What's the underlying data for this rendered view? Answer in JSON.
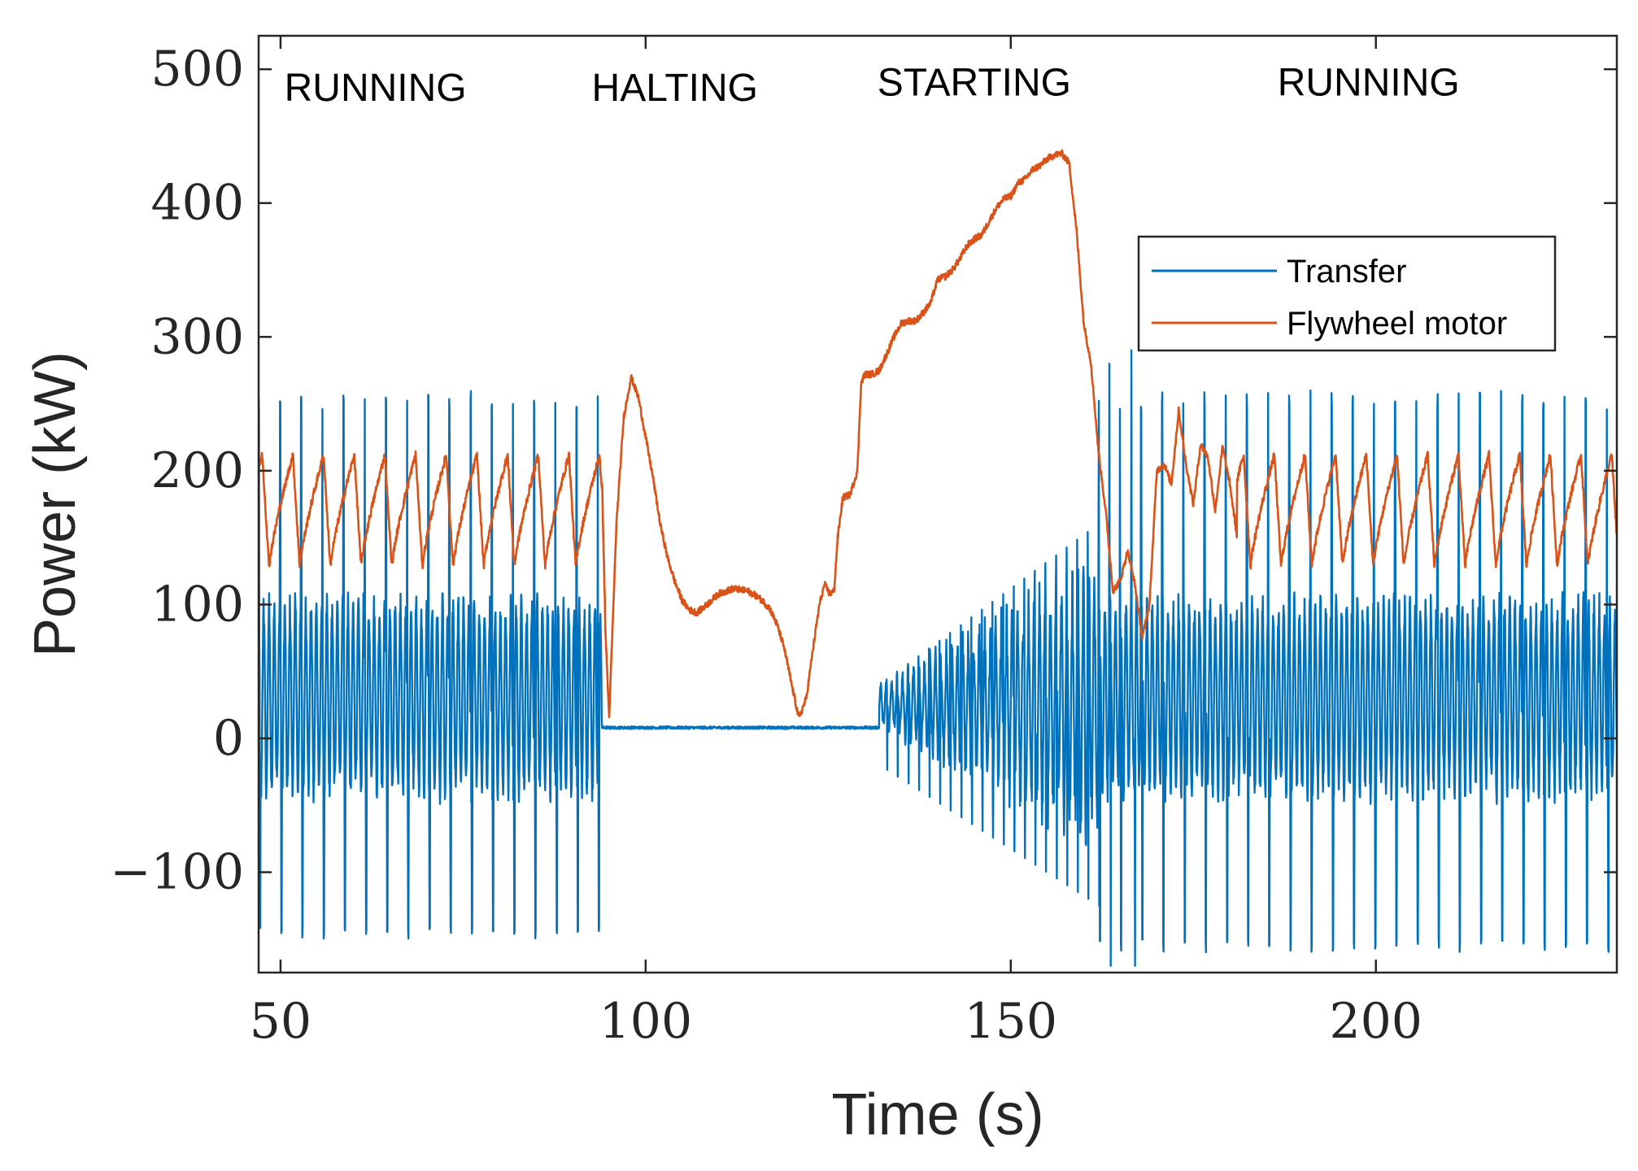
{
  "chart_data": {
    "type": "line",
    "title": "",
    "xlabel": "Time (s)",
    "ylabel": "Power (kW)",
    "xlim": [
      47,
      233
    ],
    "ylim": [
      -175,
      525
    ],
    "x_ticks": [
      50,
      100,
      150,
      200
    ],
    "x_tick_labels": [
      "50",
      "100",
      "150",
      "200"
    ],
    "y_ticks": [
      -100,
      0,
      100,
      200,
      300,
      400,
      500
    ],
    "y_tick_labels": [
      "−100",
      "0",
      "100",
      "200",
      "300",
      "400",
      "500"
    ],
    "grid": false,
    "legend_position": "top-right",
    "annotations": [
      {
        "text": "RUNNING",
        "x": 63,
        "y": 486
      },
      {
        "text": "HALTING",
        "x": 104,
        "y": 486
      },
      {
        "text": "STARTING",
        "x": 145,
        "y": 490
      },
      {
        "text": "RUNNING",
        "x": 199,
        "y": 490
      }
    ],
    "series": [
      {
        "name": "Transfer",
        "color": "#0072BD",
        "segments": [
          {
            "state": "running",
            "t_start": 47,
            "t_end": 94,
            "mean": 30,
            "pulse_period": 2.9,
            "pulse_peak": 260,
            "pulse_min": -150,
            "osc_amplitude": 70
          },
          {
            "state": "halting",
            "t_start": 94,
            "t_end": 132,
            "level": 8
          },
          {
            "state": "starting",
            "t_start": 132,
            "t_end": 162,
            "growth_start": 15,
            "growth_end": 100,
            "pulse_peak_end": 160,
            "pulse_min_end": -125
          },
          {
            "state": "running",
            "t_start": 162,
            "t_end": 233,
            "mean": 30,
            "pulse_period": 2.9,
            "pulse_peak": 260,
            "pulse_min": -160,
            "osc_amplitude": 70
          }
        ],
        "spikes": [
          [
            163.5,
            280
          ],
          [
            163.7,
            -170
          ],
          [
            166.5,
            290
          ],
          [
            167,
            -170
          ]
        ]
      },
      {
        "name": "Flywheel motor",
        "color": "#D95319",
        "running_oscillation": {
          "period": 4.2,
          "max": 212,
          "min": 128
        },
        "points": [
          [
            47,
            195
          ],
          [
            94,
            200
          ],
          [
            94.5,
            80
          ],
          [
            95,
            15
          ],
          [
            96,
            160
          ],
          [
            97,
            240
          ],
          [
            98,
            270
          ],
          [
            99,
            255
          ],
          [
            100,
            225
          ],
          [
            101,
            195
          ],
          [
            102,
            160
          ],
          [
            103,
            135
          ],
          [
            104,
            117
          ],
          [
            105,
            103
          ],
          [
            106,
            96
          ],
          [
            107,
            94
          ],
          [
            108,
            98
          ],
          [
            109,
            103
          ],
          [
            110,
            108
          ],
          [
            111,
            110
          ],
          [
            112,
            112
          ],
          [
            113,
            111
          ],
          [
            114,
            110
          ],
          [
            115,
            107
          ],
          [
            116,
            103
          ],
          [
            117,
            97
          ],
          [
            118,
            85
          ],
          [
            119,
            67
          ],
          [
            120,
            40
          ],
          [
            121,
            15
          ],
          [
            122,
            30
          ],
          [
            123,
            70
          ],
          [
            123.8,
            100
          ],
          [
            124.5,
            115
          ],
          [
            125.2,
            108
          ],
          [
            125.8,
            110
          ],
          [
            126.3,
            150
          ],
          [
            127,
            180
          ],
          [
            128,
            182
          ],
          [
            129,
            200
          ],
          [
            129.5,
            265
          ],
          [
            130,
            272
          ],
          [
            131,
            272
          ],
          [
            132,
            275
          ],
          [
            133,
            287
          ],
          [
            134,
            300
          ],
          [
            135,
            310
          ],
          [
            136,
            312
          ],
          [
            137,
            312
          ],
          [
            138,
            318
          ],
          [
            139,
            325
          ],
          [
            140,
            343
          ],
          [
            141,
            345
          ],
          [
            142,
            350
          ],
          [
            143,
            358
          ],
          [
            144,
            368
          ],
          [
            145,
            373
          ],
          [
            146,
            376
          ],
          [
            147,
            386
          ],
          [
            148,
            396
          ],
          [
            149,
            403
          ],
          [
            150,
            405
          ],
          [
            151,
            415
          ],
          [
            152,
            418
          ],
          [
            153,
            425
          ],
          [
            154,
            428
          ],
          [
            155,
            433
          ],
          [
            156,
            436
          ],
          [
            157,
            437
          ],
          [
            158,
            430
          ],
          [
            159,
            380
          ],
          [
            160,
            310
          ],
          [
            161,
            280
          ],
          [
            162,
            215
          ],
          [
            163,
            170
          ],
          [
            164,
            110
          ],
          [
            165,
            118
          ],
          [
            166,
            140
          ],
          [
            167,
            115
          ],
          [
            168,
            75
          ],
          [
            169,
            100
          ],
          [
            170,
            200
          ],
          [
            171,
            205
          ],
          [
            172,
            190
          ],
          [
            173,
            245
          ],
          [
            174,
            205
          ],
          [
            175,
            175
          ],
          [
            176,
            220
          ],
          [
            177,
            210
          ],
          [
            178,
            170
          ],
          [
            179,
            218
          ],
          [
            180,
            190
          ],
          [
            181,
            150
          ],
          [
            182,
            215
          ],
          [
            233,
            160
          ]
        ]
      }
    ]
  }
}
